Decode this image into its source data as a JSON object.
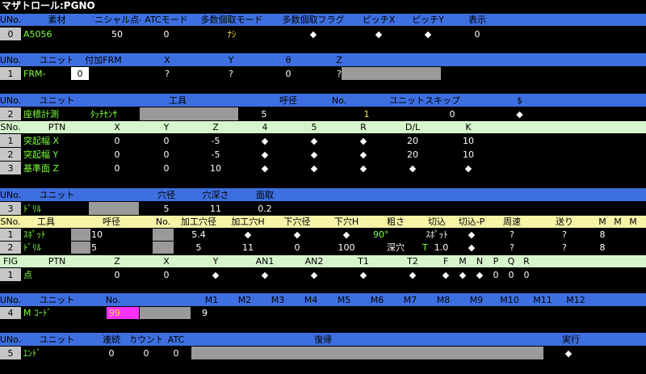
{
  "title": "マザトロール:PGNO",
  "s1": {
    "headers": [
      "UNo.",
      "素材",
      "イニシャル点-Z",
      "ATCモード",
      "多数個取モード",
      "多数個取フラグ",
      "ピッチX",
      "ピッチY",
      "表示"
    ],
    "row": {
      "no": "0",
      "material": "A5056",
      "initial_z": "50",
      "atc": "0",
      "multi_mode": "ﾅｼ",
      "multi_flag": "◆",
      "pitch_x": "◆",
      "pitch_y": "◆",
      "display": "0"
    }
  },
  "s2": {
    "headers": [
      "UNo.",
      "ユニット",
      "付加FRM",
      "X",
      "Y",
      "θ",
      "Z"
    ],
    "row": {
      "no": "1",
      "unit": "FRM-",
      "frm": "0",
      "x": "?",
      "y": "?",
      "theta": "0",
      "z": "?"
    }
  },
  "s3": {
    "headers": [
      "UNo.",
      "ユニット",
      "工具",
      "呼径",
      "No.",
      "ユニットスキップ",
      "$"
    ],
    "row": {
      "no": "2",
      "unit": "座標計測",
      "tool": "ﾀｯﾁｾﾝｻ",
      "dia": "5",
      "tno": "1",
      "skip": "0",
      "dollar": "◆"
    },
    "sub_headers": [
      "SNo.",
      "PTN",
      "X",
      "Y",
      "Z",
      "4",
      "5",
      "R",
      "D/L",
      "K"
    ],
    "rows": [
      {
        "no": "1",
        "ptn": "突起幅 X",
        "x": "0",
        "y": "0",
        "z": "-5",
        "a4": "◆",
        "a5": "◆",
        "r": "◆",
        "dl": "20",
        "k": "10"
      },
      {
        "no": "2",
        "ptn": "突起幅 Y",
        "x": "0",
        "y": "0",
        "z": "-5",
        "a4": "◆",
        "a5": "◆",
        "r": "◆",
        "dl": "20",
        "k": "10"
      },
      {
        "no": "3",
        "ptn": "基準面 Z",
        "x": "0",
        "y": "0",
        "z": "10",
        "a4": "◆",
        "a5": "◆",
        "r": "◆",
        "dl": "◆",
        "k": "◆"
      }
    ]
  },
  "s4": {
    "headers": [
      "UNo.",
      "ユニット",
      "穴径",
      "穴深さ",
      "面取"
    ],
    "row": {
      "no": "3",
      "unit": "ﾄﾞﾘﾙ",
      "hole": "5",
      "depth": "11",
      "chamfer": "0.2"
    },
    "sub_headers": [
      "SNo.",
      "工具",
      "呼径",
      "No.",
      "加工穴径",
      "加工穴H",
      "下穴径",
      "下穴H",
      "粗さ",
      "切込",
      "切込-P",
      "周速",
      "送り",
      "M",
      "M",
      "M"
    ],
    "rows": [
      {
        "no": "1",
        "tool": "ｽﾎﾟｯﾄ",
        "dia": "10",
        "tno": "",
        "hd": "5.4",
        "hh": "◆",
        "pd": "◆",
        "ph": "◆",
        "rough": "90°",
        "cut": "ｽﾎﾟｯﾄ",
        "cutp": "◆",
        "speed": "?",
        "feed": "?",
        "m1": "8"
      },
      {
        "no": "2",
        "tool": "ﾄﾞﾘﾙ",
        "dia": "5",
        "tno": "",
        "hd": "5",
        "hh": "11",
        "pd": "0",
        "ph": "100",
        "rough": "深穴",
        "cut_t": "T",
        "cut": "1.0",
        "cutp": "◆",
        "speed": "?",
        "feed": "?",
        "m1": "8"
      }
    ],
    "fig_headers": [
      "FIG",
      "PTN",
      "Z",
      "X",
      "Y",
      "AN1",
      "AN2",
      "T1",
      "T2",
      "F",
      "M",
      "N",
      "P",
      "Q",
      "R"
    ],
    "fig_row": {
      "no": "1",
      "ptn": "点",
      "z": "0",
      "x": "0",
      "y": "◆",
      "an1": "◆",
      "an2": "◆",
      "t1": "◆",
      "t2": "◆",
      "f": "◆",
      "m": "◆",
      "n": "◆",
      "p": "0",
      "q": "0",
      "r": "0"
    }
  },
  "s5": {
    "headers": [
      "UNo.",
      "ユニット",
      "No.",
      "M1",
      "M2",
      "M3",
      "M4",
      "M5",
      "M6",
      "M7",
      "M8",
      "M9",
      "M10",
      "M11",
      "M12"
    ],
    "row": {
      "no": "4",
      "unit": "M ｺｰﾄﾞ",
      "mno": "99",
      "m1": "9"
    }
  },
  "s6": {
    "headers": [
      "UNo.",
      "ユニット",
      "連続",
      "カウント",
      "ATC",
      "復帰",
      "実行"
    ],
    "row": {
      "no": "5",
      "unit": "ｴﾝﾄﾞ",
      "cont": "0",
      "count": "0",
      "atc": "0",
      "exec": "◆"
    }
  },
  "colors": {
    "header_blue": "#3e6fe0",
    "sub_green": "#d6f5cc",
    "label_green": "#7cff3a",
    "magenta": "#ff33ff",
    "yellow_text": "#ffe24a"
  }
}
